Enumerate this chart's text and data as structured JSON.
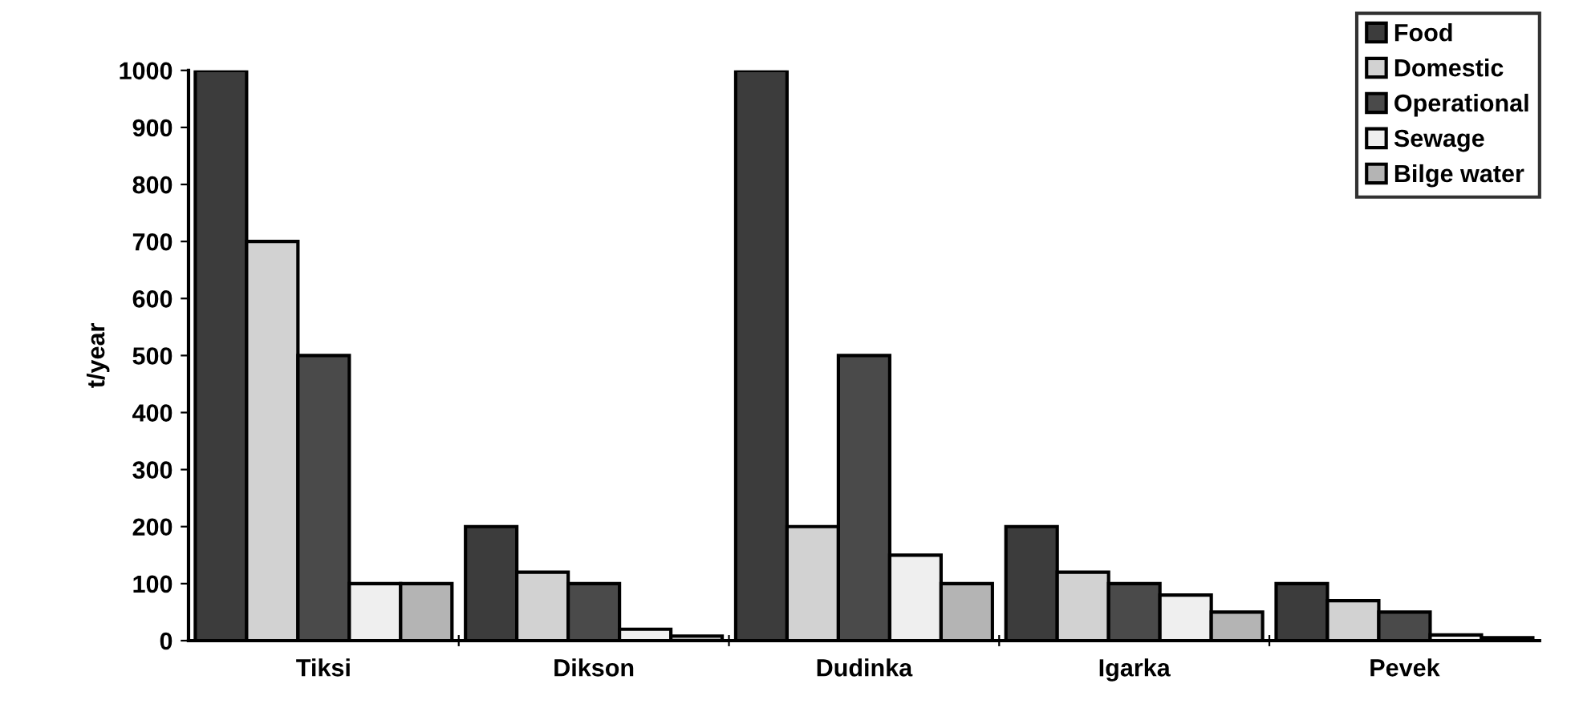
{
  "chart_data": {
    "type": "bar",
    "ylabel": "t/year",
    "categories": [
      "Tiksi",
      "Dikson",
      "Dudinka",
      "Igarka",
      "Pevek"
    ],
    "series": [
      {
        "name": "Food",
        "color": "#3c3c3c",
        "values": [
          1000,
          200,
          1000,
          200,
          100
        ]
      },
      {
        "name": "Domestic",
        "color": "#d2d2d2",
        "values": [
          700,
          120,
          200,
          120,
          70
        ]
      },
      {
        "name": "Operational",
        "color": "#4a4a4a",
        "values": [
          500,
          100,
          500,
          100,
          50
        ]
      },
      {
        "name": "Sewage",
        "color": "#efefef",
        "values": [
          100,
          20,
          150,
          80,
          10
        ]
      },
      {
        "name": "Bilge water",
        "color": "#b4b4b4",
        "values": [
          100,
          8,
          100,
          50,
          5
        ]
      }
    ],
    "ylim": [
      0,
      1000
    ],
    "yticks": [
      0,
      100,
      200,
      300,
      400,
      500,
      600,
      700,
      800,
      900,
      1000
    ],
    "grid": false,
    "legend": "top right"
  }
}
